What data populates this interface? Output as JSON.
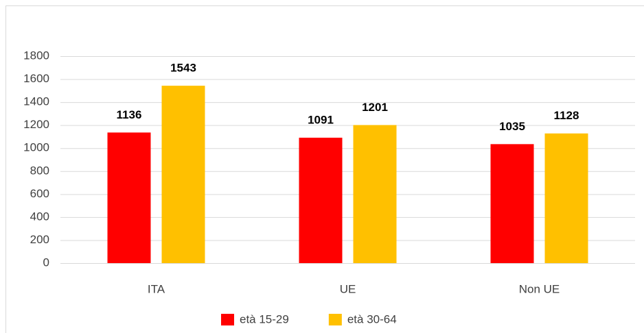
{
  "chart_data": {
    "type": "bar",
    "categories": [
      "ITA",
      "UE",
      "Non UE"
    ],
    "series": [
      {
        "name": "età 15-29",
        "color": "#ff0000",
        "values": [
          1136,
          1091,
          1035
        ]
      },
      {
        "name": "età 30-64",
        "color": "#ffc000",
        "values": [
          1543,
          1201,
          1128
        ]
      }
    ],
    "ylim": [
      0,
      1800
    ],
    "yticks": [
      0,
      200,
      400,
      600,
      800,
      1000,
      1200,
      1400,
      1600,
      1800
    ],
    "grid": true,
    "legend": "bottom"
  }
}
